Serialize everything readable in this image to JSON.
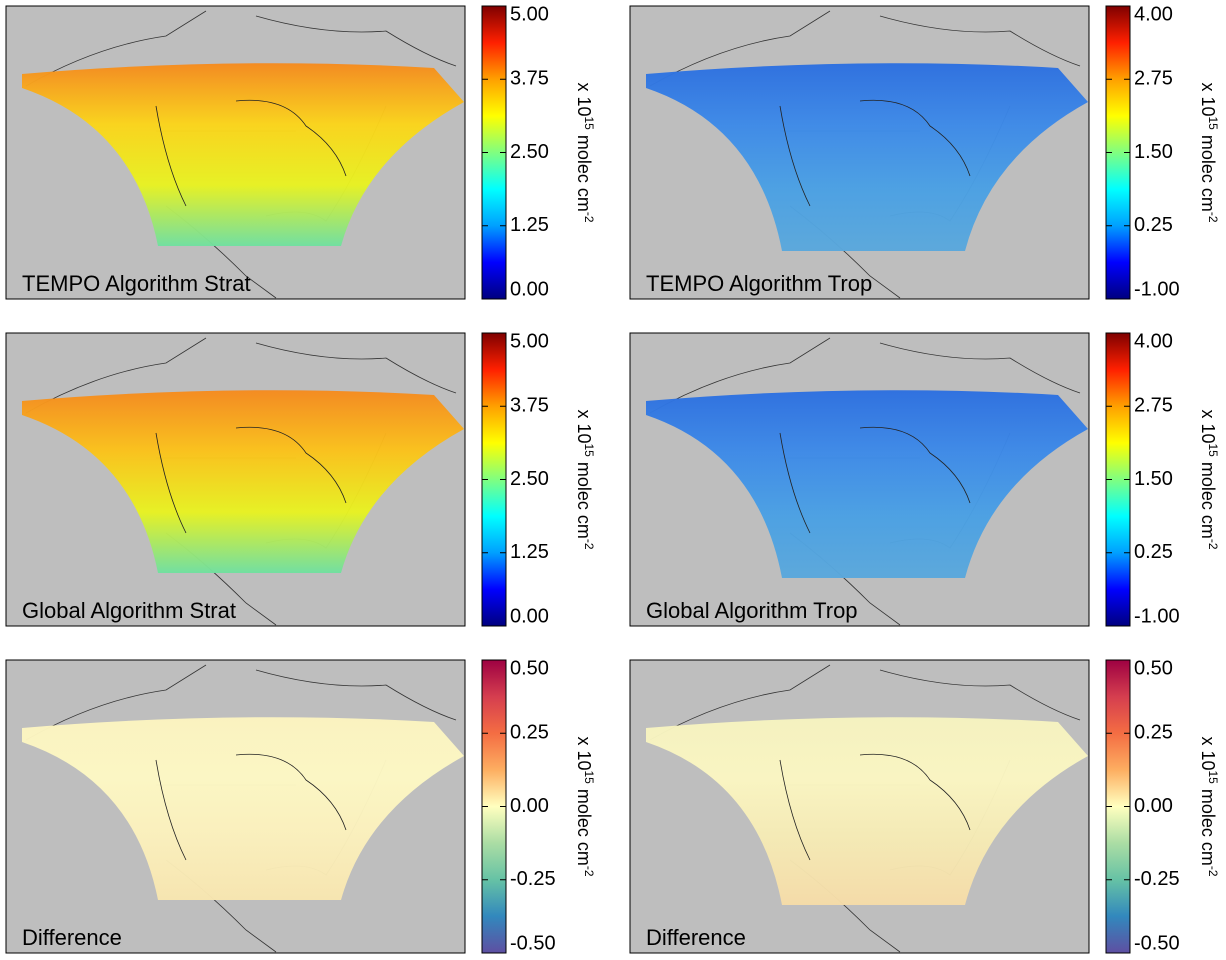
{
  "panels": [
    {
      "title": "TEMPO Algorithm Strat",
      "swath": [
        "#f58a1e",
        "#fbd41a",
        "#e8f221",
        "#70e0a0"
      ],
      "colorbar": {
        "lim": [
          0,
          5
        ],
        "ticks": [
          {
            "value": 5,
            "label": "5.00"
          },
          {
            "value": 3.75,
            "label": "3.75"
          },
          {
            "value": 2.5,
            "label": "2.50"
          },
          {
            "value": 1.25,
            "label": "1.25"
          },
          {
            "value": 0,
            "label": "0.00"
          }
        ],
        "colormap": [
          "#00007f",
          "#0000ff",
          "#00a0ff",
          "#00ffff",
          "#80ff80",
          "#ffff00",
          "#ffa000",
          "#ff2000",
          "#7f0000"
        ]
      },
      "unit": {
        "prefix": "x 10",
        "exp": "15",
        "text": " molec cm",
        "exp2": "-2"
      }
    },
    {
      "title": "TEMPO Algorithm Trop",
      "swath": [
        "#2c6fe0",
        "#3d8ae8",
        "#4aa0e4",
        "#5aa8dc"
      ],
      "colorbar": {
        "lim": [
          -1,
          4
        ],
        "ticks": [
          {
            "value": 4,
            "label": "4.00"
          },
          {
            "value": 2.75,
            "label": "2.75"
          },
          {
            "value": 1.5,
            "label": "1.50"
          },
          {
            "value": 0.25,
            "label": "0.25"
          },
          {
            "value": -1,
            "label": "-1.00"
          }
        ],
        "colormap": [
          "#00007f",
          "#0000ff",
          "#00a0ff",
          "#00ffff",
          "#80ff80",
          "#ffff00",
          "#ffa000",
          "#ff2000",
          "#7f0000"
        ]
      },
      "unit": {
        "prefix": "x 10",
        "exp": "15",
        "text": " molec cm",
        "exp2": "-2"
      }
    },
    {
      "title": "Global Algorithm Strat",
      "swath": [
        "#f58a1e",
        "#fbc21a",
        "#e8f221",
        "#70e0a0"
      ],
      "colorbar": {
        "lim": [
          0,
          5
        ],
        "ticks": [
          {
            "value": 5,
            "label": "5.00"
          },
          {
            "value": 3.75,
            "label": "3.75"
          },
          {
            "value": 2.5,
            "label": "2.50"
          },
          {
            "value": 1.25,
            "label": "1.25"
          },
          {
            "value": 0,
            "label": "0.00"
          }
        ],
        "colormap": [
          "#00007f",
          "#0000ff",
          "#00a0ff",
          "#00ffff",
          "#80ff80",
          "#ffff00",
          "#ffa000",
          "#ff2000",
          "#7f0000"
        ]
      },
      "unit": {
        "prefix": "x 10",
        "exp": "15",
        "text": " molec cm",
        "exp2": "-2"
      }
    },
    {
      "title": "Global Algorithm Trop",
      "swath": [
        "#2c6fe0",
        "#3d8ae8",
        "#4aa0e4",
        "#5aa8dc"
      ],
      "colorbar": {
        "lim": [
          -1,
          4
        ],
        "ticks": [
          {
            "value": 4,
            "label": "4.00"
          },
          {
            "value": 2.75,
            "label": "2.75"
          },
          {
            "value": 1.5,
            "label": "1.50"
          },
          {
            "value": 0.25,
            "label": "0.25"
          },
          {
            "value": -1,
            "label": "-1.00"
          }
        ],
        "colormap": [
          "#00007f",
          "#0000ff",
          "#00a0ff",
          "#00ffff",
          "#80ff80",
          "#ffff00",
          "#ffa000",
          "#ff2000",
          "#7f0000"
        ]
      },
      "unit": {
        "prefix": "x 10",
        "exp": "15",
        "text": " molec cm",
        "exp2": "-2"
      }
    },
    {
      "title": "Difference",
      "swath": [
        "#fcf4c0",
        "#fdf8c4",
        "#fbf0bc",
        "#f8e6b0"
      ],
      "colorbar": {
        "lim": [
          -0.5,
          0.5
        ],
        "ticks": [
          {
            "value": 0.5,
            "label": "0.50"
          },
          {
            "value": 0.25,
            "label": "0.25"
          },
          {
            "value": 0,
            "label": "0.00"
          },
          {
            "value": -0.25,
            "label": "-0.25"
          },
          {
            "value": -0.5,
            "label": "-0.50"
          }
        ],
        "colormap": [
          "#5e4fa2",
          "#3288bd",
          "#66c2a5",
          "#abdda4",
          "#ffffbf",
          "#fdae61",
          "#f46d43",
          "#d53e4f",
          "#9e0142"
        ]
      },
      "unit": {
        "prefix": "x 10",
        "exp": "15",
        "text": " molec cm",
        "exp2": "-2"
      }
    },
    {
      "title": "Difference",
      "swath": [
        "#f6f3c0",
        "#fbf6c2",
        "#f5eab4",
        "#f6dca8"
      ],
      "colorbar": {
        "lim": [
          -0.5,
          0.5
        ],
        "ticks": [
          {
            "value": 0.5,
            "label": "0.50"
          },
          {
            "value": 0.25,
            "label": "0.25"
          },
          {
            "value": 0,
            "label": "0.00"
          },
          {
            "value": -0.25,
            "label": "-0.25"
          },
          {
            "value": -0.5,
            "label": "-0.50"
          }
        ],
        "colormap": [
          "#5e4fa2",
          "#3288bd",
          "#66c2a5",
          "#abdda4",
          "#ffffbf",
          "#fdae61",
          "#f46d43",
          "#d53e4f",
          "#9e0142"
        ]
      },
      "unit": {
        "prefix": "x 10",
        "exp": "15",
        "text": " molec cm",
        "exp2": "-2"
      }
    }
  ]
}
